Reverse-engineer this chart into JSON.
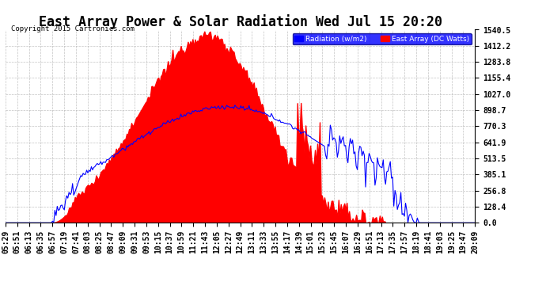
{
  "title": "East Array Power & Solar Radiation Wed Jul 15 20:20",
  "copyright": "Copyright 2015 Cartronics.com",
  "legend_labels": [
    "Radiation (w/m2)",
    "East Array (DC Watts)"
  ],
  "legend_colors": [
    "blue",
    "red"
  ],
  "y_right_ticks": [
    0.0,
    128.4,
    256.8,
    385.1,
    513.5,
    641.9,
    770.3,
    898.7,
    1027.0,
    1155.4,
    1283.8,
    1412.2,
    1540.5
  ],
  "y_max": 1540.5,
  "y_min": 0.0,
  "background_color": "#ffffff",
  "plot_bg_color": "#ffffff",
  "grid_color": "#aaaaaa",
  "fill_color": "red",
  "line_color": "blue",
  "title_fontsize": 12,
  "tick_fontsize": 7,
  "n_points": 400,
  "time_labels": [
    "05:29",
    "05:51",
    "06:13",
    "06:35",
    "06:57",
    "07:19",
    "07:41",
    "08:03",
    "08:25",
    "08:47",
    "09:09",
    "09:31",
    "09:53",
    "10:15",
    "10:37",
    "10:59",
    "11:21",
    "11:43",
    "12:05",
    "12:27",
    "12:49",
    "13:11",
    "13:33",
    "13:55",
    "14:17",
    "14:39",
    "15:01",
    "15:23",
    "15:45",
    "16:07",
    "16:29",
    "16:51",
    "17:13",
    "17:35",
    "17:57",
    "18:19",
    "18:41",
    "19:03",
    "19:25",
    "19:47",
    "20:09"
  ]
}
